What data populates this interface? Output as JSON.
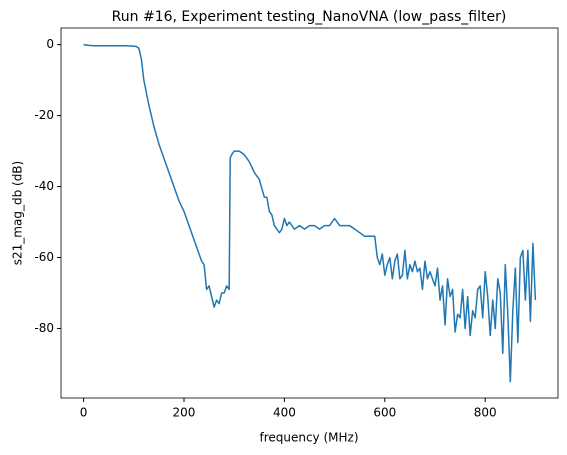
{
  "chart_data": {
    "type": "line",
    "title": "Run #16, Experiment testing_NanoVNA (low_pass_filter)",
    "xlabel": "frequency (MHz)",
    "ylabel": "s21_mag_db (dB)",
    "x": [
      0,
      10,
      20,
      40,
      60,
      80,
      100,
      105,
      110,
      115,
      120,
      130,
      140,
      150,
      160,
      170,
      180,
      190,
      200,
      210,
      220,
      230,
      235,
      240,
      245,
      250,
      255,
      260,
      265,
      270,
      275,
      280,
      285,
      290,
      292,
      295,
      300,
      310,
      320,
      330,
      340,
      350,
      360,
      365,
      370,
      375,
      380,
      390,
      395,
      400,
      405,
      410,
      420,
      430,
      440,
      450,
      460,
      470,
      480,
      490,
      500,
      510,
      520,
      530,
      540,
      550,
      560,
      570,
      575,
      580,
      585,
      590,
      595,
      600,
      605,
      610,
      615,
      620,
      625,
      630,
      635,
      640,
      645,
      650,
      655,
      660,
      665,
      670,
      675,
      680,
      685,
      690,
      700,
      705,
      710,
      715,
      720,
      725,
      730,
      735,
      740,
      745,
      750,
      755,
      760,
      765,
      770,
      775,
      780,
      785,
      790,
      795,
      800,
      805,
      810,
      815,
      820,
      825,
      830,
      835,
      840,
      845,
      850,
      855,
      860,
      865,
      870,
      875,
      880,
      885,
      890,
      895,
      900
    ],
    "series": [
      {
        "name": "s21_mag_db",
        "color": "#1f77b4",
        "values": [
          0,
          -0.2,
          -0.3,
          -0.3,
          -0.3,
          -0.3,
          -0.4,
          -0.5,
          -1,
          -4,
          -10,
          -17,
          -23,
          -28,
          -32,
          -36,
          -40,
          -44,
          -47,
          -51,
          -55,
          -59,
          -61,
          -62,
          -69,
          -68,
          -71,
          -74,
          -72,
          -73,
          -70,
          -70,
          -68,
          -69,
          -32,
          -31,
          -30,
          -30,
          -31,
          -33,
          -36,
          -38,
          -43,
          -43,
          -47,
          -48,
          -51,
          -53,
          -52,
          -49,
          -51,
          -50,
          -52,
          -51,
          -52,
          -51,
          -51,
          -52,
          -51,
          -51,
          -49,
          -51,
          -51,
          -51,
          -52,
          -53,
          -54,
          -54,
          -54,
          -54,
          -60,
          -62,
          -59,
          -65,
          -62,
          -60,
          -66,
          -61,
          -59,
          -66,
          -65,
          -58,
          -66,
          -62,
          -64,
          -61,
          -64,
          -63,
          -69,
          -61,
          -66,
          -64,
          -68,
          -63,
          -72,
          -68,
          -79,
          -66,
          -71,
          -69,
          -81,
          -76,
          -77,
          -69,
          -80,
          -71,
          -82,
          -75,
          -77,
          -69,
          -68,
          -77,
          -64,
          -71,
          -82,
          -72,
          -80,
          -66,
          -70,
          -87,
          -62,
          -76,
          -95,
          -75,
          -63,
          -84,
          -60,
          -58,
          -72,
          -58,
          -78,
          -56,
          -72
        ]
      }
    ],
    "xlim": [
      -45,
      945
    ],
    "xticks": [
      0,
      200,
      400,
      600,
      800
    ],
    "ylim": [
      -99.6,
      4.7
    ],
    "yticks": [
      0,
      -20,
      -40,
      -60,
      -80
    ],
    "grid": false
  }
}
